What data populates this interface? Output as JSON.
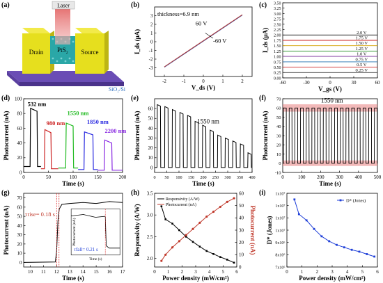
{
  "panel_labels": [
    "(a)",
    "(b)",
    "(c)",
    "(d)",
    "(e)",
    "(f)",
    "(g)",
    "(h)",
    "(i)"
  ],
  "device": {
    "laser": "Laser",
    "drain": "Drain",
    "source": "Source",
    "channel": "PtS₂",
    "substrate": "SiO₂/Si"
  },
  "colors": {
    "substrate": "#6a4db5",
    "electrode": "#e6df1e",
    "channel": "#2aa7a7",
    "laser": "#e46a6a"
  },
  "chart_data": [
    {
      "id": "b",
      "type": "line",
      "xlabel": "V_ds (V)",
      "ylabel": "I_ds (μA)",
      "xlim": [
        -2.5,
        2.5
      ],
      "ylim": [
        -4,
        4
      ],
      "xticks": [
        "-2",
        "-1",
        "0",
        "1",
        "2"
      ],
      "yticks": [
        "-3",
        "-2",
        "-1",
        "0",
        "1",
        "2",
        "3"
      ],
      "annotations": [
        "thickness=6.9 nm",
        "60 V",
        "-60 V"
      ],
      "series": [
        {
          "x": [
            -2,
            2
          ],
          "y": [
            -2.9,
            3.1
          ],
          "color": "#b23a3a"
        }
      ]
    },
    {
      "id": "c",
      "type": "line",
      "xlabel": "V_gs (V)",
      "ylabel": "I_ds (μA)",
      "xlim": [
        -60,
        60
      ],
      "ylim": [
        0,
        3.5
      ],
      "xticks": [
        "-60",
        "-30",
        "0",
        "30",
        "60"
      ],
      "yticks": [
        "0.00",
        "0.25",
        "0.50",
        "0.75",
        "1.00",
        "1.25",
        "1.50",
        "1.75",
        "2.00",
        "2.25",
        "2.50",
        "2.75",
        "3.00",
        "3.25",
        "3.50"
      ],
      "series": [
        {
          "name": "2.0 V",
          "y": 2.0,
          "color": "#000000"
        },
        {
          "name": "1.75 V",
          "y": 1.75,
          "color": "#cc2222"
        },
        {
          "name": "1.25 V",
          "y": 1.25,
          "color": "#1a8a1a"
        },
        {
          "name": "1.50 V",
          "y": 1.5,
          "color": "#d4a000"
        },
        {
          "name": "1.0 V",
          "y": 1.0,
          "color": "#7a2f9a"
        },
        {
          "name": "0.75 V",
          "y": 0.75,
          "color": "#1f6fb0"
        },
        {
          "name": "0.5 V",
          "y": 0.5,
          "color": "#cc2222"
        },
        {
          "name": "0.25 V",
          "y": 0.25,
          "color": "#444444"
        }
      ]
    },
    {
      "id": "d",
      "type": "line",
      "xlabel": "Time (s)",
      "ylabel": "Photocurrent (nA)",
      "xlim": [
        0,
        200
      ],
      "ylim": [
        0,
        100
      ],
      "xticks": [
        "0",
        "50",
        "100",
        "150",
        "200"
      ],
      "yticks": [
        "0",
        "20",
        "40",
        "60",
        "80",
        "100"
      ],
      "series": [
        {
          "name": "532 nm",
          "color": "#000000",
          "start": 0,
          "end": 35,
          "on": [
            13,
            27
          ],
          "high": 87,
          "low": 8
        },
        {
          "name": "980 nm",
          "color": "#cc2222",
          "start": 35,
          "end": 70,
          "on": [
            42,
            55
          ],
          "high": 58,
          "low": 5
        },
        {
          "name": "1550 nm",
          "color": "#22bb22",
          "start": 70,
          "end": 110,
          "on": [
            85,
            100
          ],
          "high": 67,
          "low": 6
        },
        {
          "name": "1850 nm",
          "color": "#2a2ae0",
          "start": 110,
          "end": 150,
          "on": [
            122,
            140
          ],
          "high": 55,
          "low": 4
        },
        {
          "name": "2200 nm",
          "color": "#8a2be2",
          "start": 150,
          "end": 200,
          "on": [
            163,
            178
          ],
          "high": 44,
          "low": 3
        }
      ]
    },
    {
      "id": "e",
      "type": "line",
      "title": "1550 nm",
      "xlabel": "Time (s)",
      "ylabel": "Photocurrent (nA)",
      "xlim": [
        0,
        400
      ],
      "ylim": [
        -5,
        70
      ],
      "xticks": [
        "0",
        "50",
        "100",
        "150",
        "200",
        "250",
        "300",
        "350",
        "400"
      ],
      "yticks": [
        "0",
        "10",
        "20",
        "30",
        "40",
        "50",
        "60"
      ],
      "period": 31,
      "highs": [
        64,
        62,
        59,
        56,
        53,
        47,
        43,
        38,
        33,
        30,
        27,
        24,
        15
      ]
    },
    {
      "id": "f",
      "type": "line",
      "title": "1550 nm",
      "xlabel": "Time (s)",
      "ylabel": "Photocurrent (nA)",
      "xlim": [
        0,
        500
      ],
      "ylim": [
        -10,
        70
      ],
      "xticks": [
        "0",
        "100",
        "200",
        "300",
        "400",
        "500"
      ],
      "yticks": [
        "-10",
        "0",
        "10",
        "20",
        "30",
        "40",
        "50",
        "60",
        "70"
      ],
      "period": 30,
      "high": 60,
      "low": 0
    },
    {
      "id": "g",
      "type": "line",
      "xlabel": "Time (s)",
      "ylabel": "Photocurrent (nA)",
      "xlim": [
        9.5,
        17
      ],
      "ylim": [
        -5,
        75
      ],
      "xticks": [
        "10",
        "11",
        "12",
        "13",
        "14",
        "15",
        "16",
        "17"
      ],
      "yticks": [
        "0",
        "10",
        "20",
        "30",
        "40",
        "50",
        "60",
        "70"
      ],
      "annotations": [
        "τrise= 0.18 s",
        "τfall= 0.21 s"
      ],
      "inset": {
        "xlabel": "Time (s)",
        "ylabel": "Photocurrent (nA)"
      }
    },
    {
      "id": "h",
      "type": "line",
      "xlabel": "Power density (mW/cm²)",
      "ylabel": "Responsivity (A/W)",
      "ylabel2": "Photocurrent (nA)",
      "xlim": [
        0,
        6
      ],
      "ylim": [
        1.8,
        3.5
      ],
      "ylim2": [
        0,
        60
      ],
      "xticks": [
        "0",
        "1",
        "2",
        "3",
        "4",
        "5",
        "6"
      ],
      "yticks": [
        "2.0",
        "2.5",
        "3.0",
        "3.5"
      ],
      "yticks2": [
        "0",
        "10",
        "20",
        "30",
        "40",
        "50",
        "60"
      ],
      "series": [
        {
          "name": "Responsivity (A/W)",
          "axis": "left",
          "color": "#000000",
          "x": [
            0.5,
            0.8,
            1.3,
            1.8,
            2.3,
            2.8,
            3.3,
            3.8,
            4.3,
            4.8,
            5.3,
            5.8
          ],
          "y": [
            3.2,
            2.9,
            2.8,
            2.65,
            2.5,
            2.38,
            2.27,
            2.17,
            2.1,
            2.03,
            1.97,
            1.9
          ]
        },
        {
          "name": "Photocurrent (nA)",
          "axis": "right",
          "color": "#c0392b",
          "x": [
            0.5,
            0.8,
            1.3,
            1.8,
            2.3,
            2.8,
            3.3,
            3.8,
            4.3,
            4.8,
            5.3,
            5.8
          ],
          "y": [
            5,
            10,
            16,
            21,
            26,
            31,
            36,
            41,
            45,
            49,
            53,
            56
          ]
        }
      ]
    },
    {
      "id": "i",
      "type": "line",
      "xlabel": "Power density (mW/cm²)",
      "ylabel": "D* (Jones)",
      "xlim": [
        0,
        6
      ],
      "ylim": [
        7000000.0,
        13000000.0
      ],
      "xticks": [
        "0",
        "1",
        "2",
        "3",
        "4",
        "5",
        "6"
      ],
      "yticks": [
        "7x10⁶",
        "8x10⁶",
        "9x10⁶",
        "1x10⁷",
        "1x10⁷",
        "1x10⁷",
        "1x10⁷"
      ],
      "series": [
        {
          "name": "D* (Jones)",
          "color": "#1f3fd8",
          "x": [
            0.5,
            0.8,
            1.3,
            1.8,
            2.3,
            2.8,
            3.3,
            3.8,
            4.3,
            4.8,
            5.3,
            5.8
          ],
          "y": [
            12500000.0,
            11300000.0,
            10800000.0,
            10100000.0,
            9500000.0,
            9100000.0,
            8800000.0,
            8600000.0,
            8400000.0,
            8250000.0,
            8050000.0,
            7850000.0
          ]
        }
      ]
    }
  ]
}
